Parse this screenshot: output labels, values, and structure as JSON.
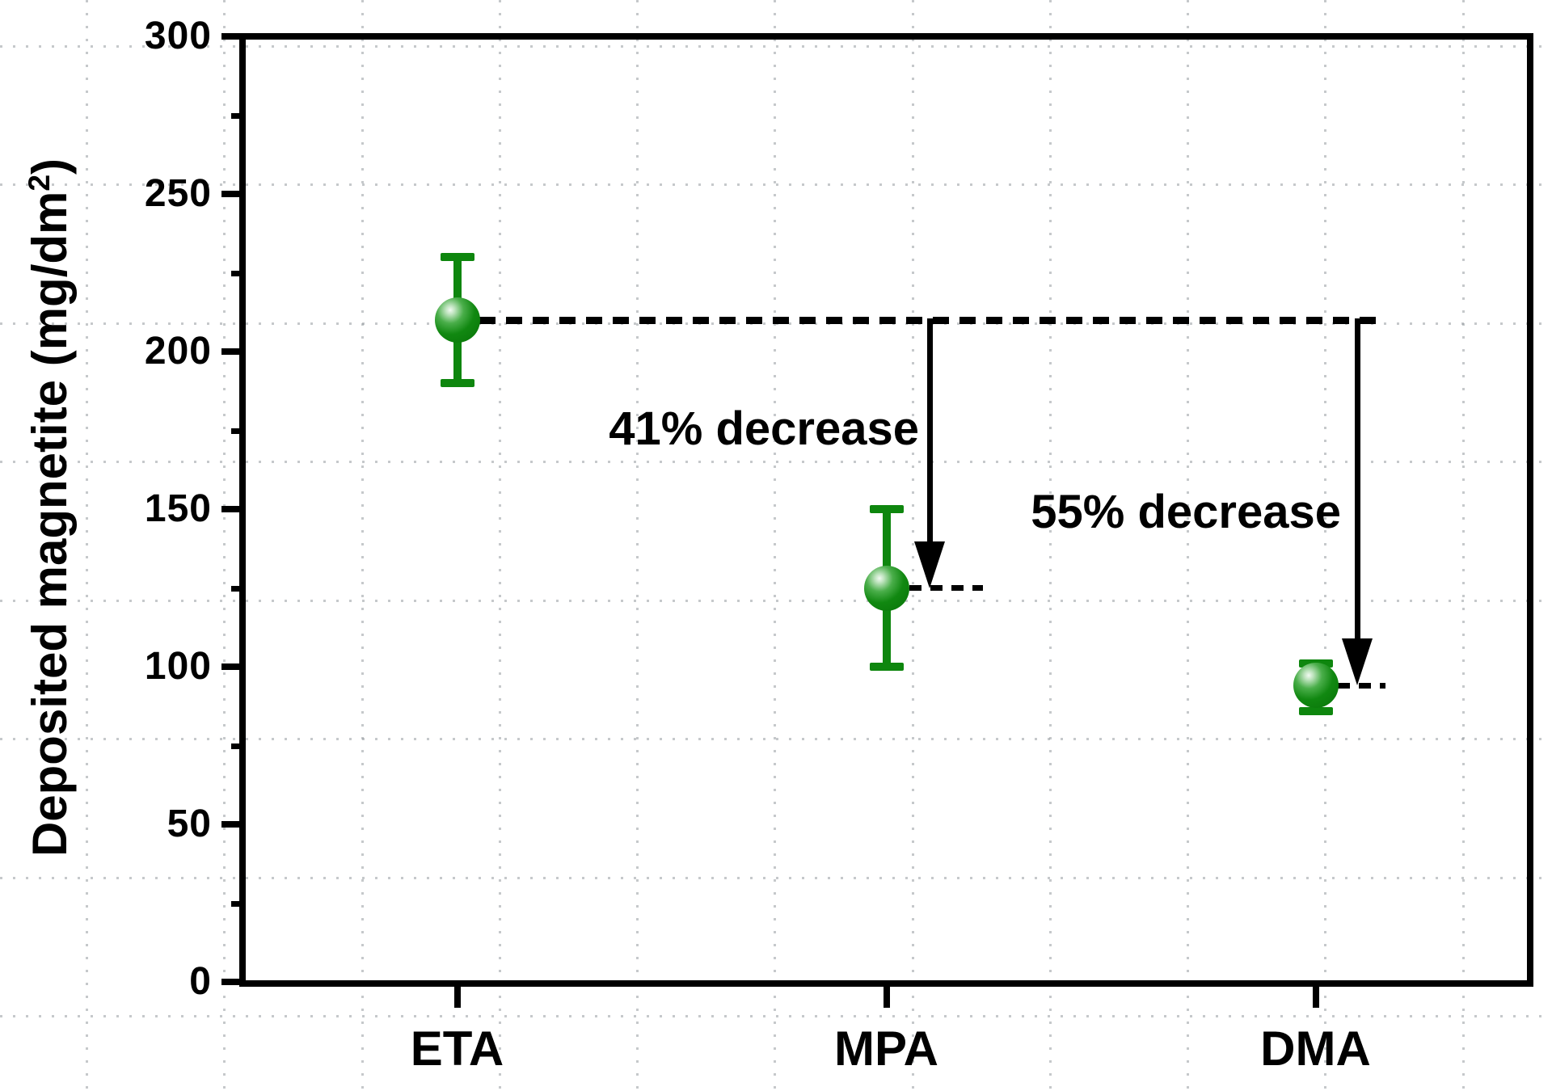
{
  "chart_data": {
    "type": "scatter",
    "title": "",
    "ylabel_main": "Deposited magnetite (mg/dm",
    "ylabel_sup": "2",
    "ylabel_close": ")",
    "xlabel": "",
    "categories": [
      "ETA",
      "MPA",
      "DMA"
    ],
    "series": [
      {
        "name": "Deposited magnetite",
        "values": [
          210,
          125,
          94
        ],
        "error_plus": [
          20,
          25,
          7
        ],
        "error_minus": [
          20,
          25,
          8
        ],
        "marker": "sphere",
        "marker_color": "#118811"
      }
    ],
    "ylim": [
      0,
      300
    ],
    "yticks": [
      0,
      50,
      100,
      150,
      200,
      250,
      300
    ],
    "ytick_minor_step": 25,
    "grid": "light dotted square grid over full canvas",
    "legend": "none",
    "baseline": {
      "value": 210,
      "style": "horizontal dashed line from ETA point extending right"
    },
    "annotations": [
      {
        "text": "41% decrease",
        "from_value": 210,
        "to_value": 125,
        "target_category": "MPA"
      },
      {
        "text": "55% decrease",
        "from_value": 210,
        "to_value": 94,
        "target_category": "DMA"
      }
    ]
  },
  "colors": {
    "marker_green": "#118811",
    "error_bar_green": "#0e860e",
    "axis_black": "#000000",
    "grid_gray": "#9aa0a4",
    "background": "#ffffff"
  }
}
